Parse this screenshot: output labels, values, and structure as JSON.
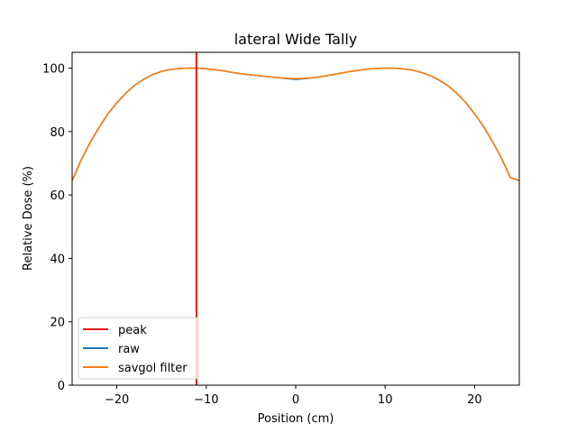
{
  "chart_data": {
    "type": "line",
    "title": "lateral Wide Tally",
    "xlabel": "Position (cm)",
    "ylabel": "Relative Dose (%)",
    "xlim": [
      -25,
      25
    ],
    "ylim": [
      0,
      105
    ],
    "xticks": [
      -20,
      -10,
      0,
      10,
      20
    ],
    "xtick_labels": [
      "−20",
      "−10",
      "0",
      "10",
      "20"
    ],
    "yticks": [
      0,
      20,
      40,
      60,
      80,
      100
    ],
    "ytick_labels": [
      "0",
      "20",
      "40",
      "60",
      "80",
      "100"
    ],
    "grid": false,
    "legend_position": "lower-left",
    "peak": {
      "name": "peak",
      "x": -11.1,
      "color": "#e41a1c"
    },
    "series": [
      {
        "name": "raw",
        "color": "#1f77b4",
        "x": [
          -25,
          -24,
          -23,
          -22,
          -21,
          -20,
          -19,
          -18,
          -17,
          -16,
          -15,
          -14,
          -13,
          -12,
          -11,
          -10,
          -9,
          -8,
          -7,
          -6,
          -5,
          -4,
          -3,
          -2,
          -1,
          0,
          1,
          2,
          3,
          4,
          5,
          6,
          7,
          8,
          9,
          10,
          11,
          12,
          13,
          14,
          15,
          16,
          17,
          18,
          19,
          20,
          21,
          22,
          23,
          24,
          25
        ],
        "y": [
          64.5,
          71.0,
          76.5,
          81.3,
          85.6,
          89.1,
          92.1,
          94.6,
          96.5,
          98.0,
          99.0,
          99.6,
          99.9,
          100.0,
          100.0,
          99.8,
          99.5,
          99.1,
          98.6,
          98.2,
          97.9,
          97.6,
          97.3,
          97.0,
          96.7,
          96.5,
          96.7,
          97.0,
          97.4,
          97.9,
          98.4,
          98.9,
          99.3,
          99.7,
          99.9,
          100.0,
          100.0,
          99.8,
          99.4,
          98.7,
          97.7,
          96.3,
          94.5,
          92.1,
          89.2,
          85.6,
          81.6,
          76.9,
          71.6,
          65.5,
          64.5
        ]
      },
      {
        "name": "savgol filter",
        "color": "#ff7f0e",
        "x": [
          -25,
          -24,
          -23,
          -22,
          -21,
          -20,
          -19,
          -18,
          -17,
          -16,
          -15,
          -14,
          -13,
          -12,
          -11,
          -10,
          -9,
          -8,
          -7,
          -6,
          -5,
          -4,
          -3,
          -2,
          -1,
          0,
          1,
          2,
          3,
          4,
          5,
          6,
          7,
          8,
          9,
          10,
          11,
          12,
          13,
          14,
          15,
          16,
          17,
          18,
          19,
          20,
          21,
          22,
          23,
          24,
          25
        ],
        "y": [
          64.5,
          71.0,
          76.5,
          81.3,
          85.6,
          89.1,
          92.1,
          94.6,
          96.5,
          98.0,
          99.0,
          99.6,
          99.9,
          100.0,
          100.0,
          99.8,
          99.5,
          99.1,
          98.6,
          98.2,
          97.9,
          97.6,
          97.3,
          97.0,
          96.8,
          96.7,
          96.8,
          97.0,
          97.4,
          97.9,
          98.4,
          98.9,
          99.3,
          99.7,
          99.9,
          100.0,
          100.0,
          99.8,
          99.4,
          98.7,
          97.7,
          96.3,
          94.5,
          92.1,
          89.2,
          85.6,
          81.6,
          76.9,
          71.6,
          65.5,
          64.5
        ]
      }
    ]
  }
}
